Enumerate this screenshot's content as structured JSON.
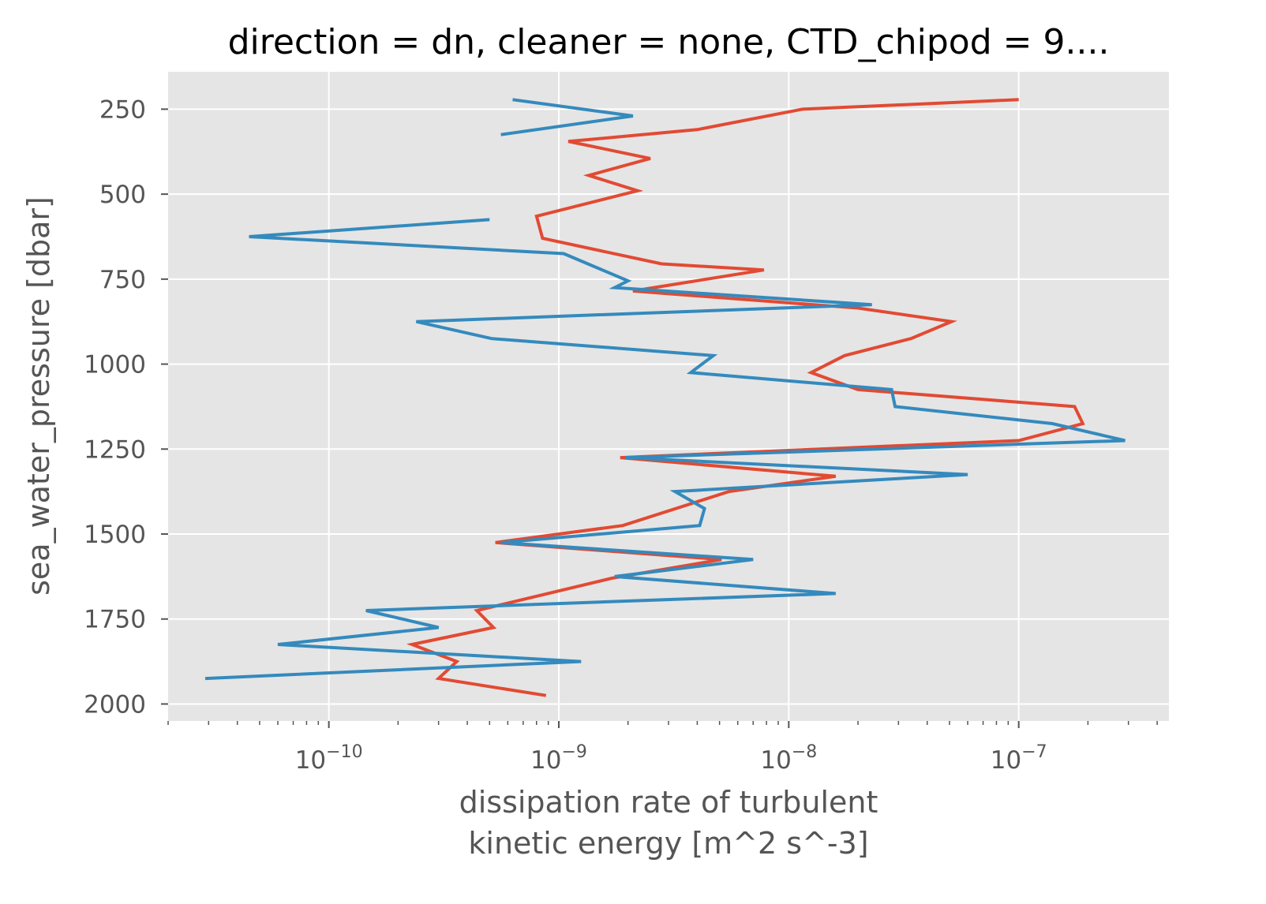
{
  "chart_data": {
    "type": "line",
    "title": "direction = dn, cleaner = none, CTD_chipod = 9....",
    "xlabel_line1": "dissipation rate of turbulent",
    "xlabel_line2": "kinetic energy [m^2 s^-3]",
    "ylabel": "sea_water_pressure [dbar]",
    "x_scale": "log",
    "xlim": [
      2e-11,
      4.5e-07
    ],
    "ylim": [
      2050,
      140
    ],
    "y_inverted": true,
    "grid": true,
    "background": "#e5e5e5",
    "x_ticks": [
      {
        "base": "10",
        "exp": "−10",
        "value": 1e-10
      },
      {
        "base": "10",
        "exp": "−9",
        "value": 1e-09
      },
      {
        "base": "10",
        "exp": "−8",
        "value": 1e-08
      },
      {
        "base": "10",
        "exp": "−7",
        "value": 1e-07
      }
    ],
    "y_ticks": [
      "250",
      "500",
      "750",
      "1000",
      "1250",
      "1500",
      "1750",
      "2000"
    ],
    "series": [
      {
        "color": "#e24a33",
        "points": [
          [
            1e-07,
            222
          ],
          [
            1.15e-08,
            250
          ],
          [
            4e-09,
            310
          ],
          [
            1.1e-09,
            345
          ],
          [
            2.5e-09,
            395
          ],
          [
            1.35e-09,
            445
          ],
          [
            2.2e-09,
            490
          ],
          [
            8e-10,
            565
          ],
          [
            8.5e-10,
            630
          ],
          [
            2.8e-09,
            705
          ],
          [
            7.8e-09,
            723
          ],
          [
            2.1e-09,
            785
          ],
          [
            2e-08,
            835
          ],
          [
            5.1e-08,
            875
          ],
          [
            3.4e-08,
            925
          ],
          [
            1.75e-08,
            975
          ],
          [
            1.25e-08,
            1025
          ],
          [
            2e-08,
            1075
          ],
          [
            1.75e-07,
            1125
          ],
          [
            1.9e-07,
            1175
          ],
          [
            1e-07,
            1225
          ],
          [
            1.85e-09,
            1275
          ],
          [
            1.6e-08,
            1330
          ],
          [
            5.5e-09,
            1375
          ],
          [
            1.9e-09,
            1475
          ],
          [
            5.3e-10,
            1525
          ],
          [
            5.1e-09,
            1575
          ],
          [
            1.7e-09,
            1630
          ],
          [
            4.4e-10,
            1725
          ],
          [
            5.2e-10,
            1775
          ],
          [
            2.3e-10,
            1825
          ],
          [
            3.6e-10,
            1875
          ],
          [
            3e-10,
            1925
          ],
          [
            8.8e-10,
            1975
          ]
        ]
      },
      {
        "color": "#348abd",
        "points": [
          [
            6.3e-10,
            222
          ],
          [
            2.1e-09,
            270
          ],
          [
            5.6e-10,
            325
          ],
          null,
          [
            5e-10,
            575
          ],
          [
            4.5e-11,
            625
          ],
          [
            1.05e-09,
            675
          ],
          [
            2e-09,
            755
          ],
          [
            1.75e-09,
            775
          ],
          [
            2.3e-08,
            825
          ],
          [
            2.4e-10,
            875
          ],
          [
            5.1e-10,
            925
          ],
          [
            4.7e-09,
            975
          ],
          [
            3.75e-09,
            1025
          ],
          [
            2.8e-08,
            1075
          ],
          [
            2.9e-08,
            1125
          ],
          [
            1.4e-07,
            1175
          ],
          [
            2.9e-07,
            1225
          ],
          [
            1.95e-09,
            1275
          ],
          [
            6e-08,
            1325
          ],
          [
            3.2e-09,
            1375
          ],
          [
            4.3e-09,
            1425
          ],
          [
            4.1e-09,
            1475
          ],
          [
            5.6e-10,
            1525
          ],
          [
            7e-09,
            1575
          ],
          [
            1.75e-09,
            1625
          ],
          [
            1.6e-08,
            1675
          ],
          [
            1.45e-10,
            1725
          ],
          [
            3e-10,
            1775
          ],
          [
            6e-11,
            1825
          ],
          [
            1.25e-09,
            1875
          ],
          [
            2.9e-11,
            1925
          ]
        ]
      }
    ]
  }
}
